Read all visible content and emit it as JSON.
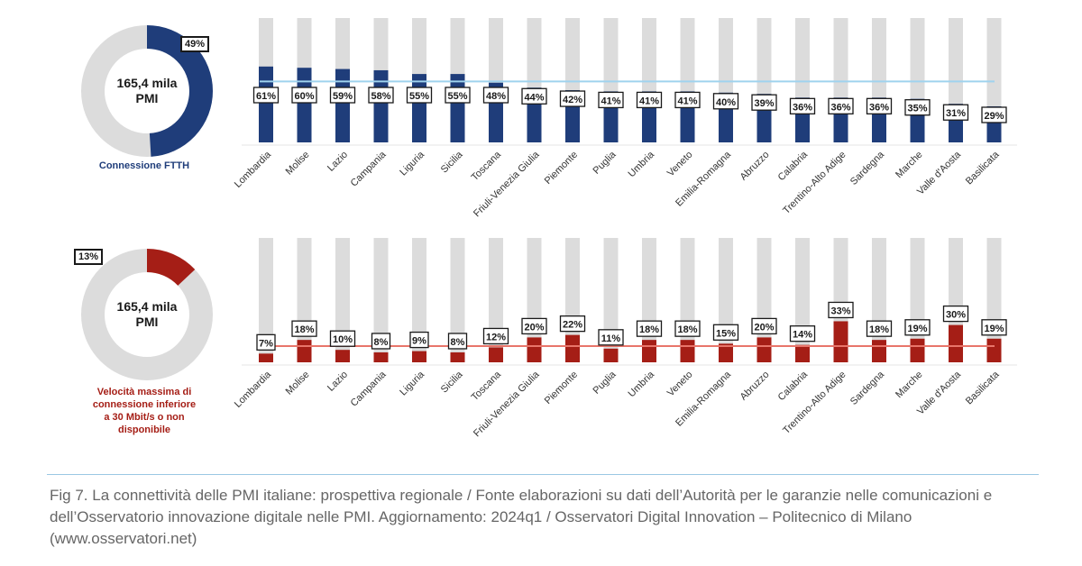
{
  "donuts": {
    "top": {
      "center_line1": "165,4 mila",
      "center_line2": "PMI",
      "percent": 49,
      "percent_label": "49%",
      "caption": "Connessione FTTH",
      "color": "#1f3d7a"
    },
    "bottom": {
      "center_line1": "165,4 mila",
      "center_line2": "PMI",
      "percent": 13,
      "percent_label": "13%",
      "caption_lines": [
        "Velocità massima di",
        "connessione inferiore",
        "a 30 Mbit/s o non",
        "disponibile"
      ],
      "color": "#a51e16"
    }
  },
  "chart_data": [
    {
      "type": "bar",
      "categories": [
        "Lombardia",
        "Molise",
        "Lazio",
        "Campania",
        "Liguria",
        "Sicilia",
        "Toscana",
        "Friuli-Venezia Giulia",
        "Piemonte",
        "Puglia",
        "Umbria",
        "Veneto",
        "Emilia-Romagna",
        "Abruzzo",
        "Calabria",
        "Trentino-Alto Adige",
        "Sardegna",
        "Marche",
        "Valle d'Aosta",
        "Basilicata"
      ],
      "values": [
        61,
        60,
        59,
        58,
        55,
        55,
        48,
        44,
        42,
        41,
        41,
        41,
        40,
        39,
        36,
        36,
        36,
        35,
        31,
        29
      ],
      "labels": [
        "61%",
        "60%",
        "59%",
        "58%",
        "55%",
        "55%",
        "48%",
        "44%",
        "42%",
        "41%",
        "41%",
        "41%",
        "40%",
        "39%",
        "36%",
        "36%",
        "36%",
        "35%",
        "31%",
        "29%"
      ],
      "reference_line": 49,
      "ylim": [
        0,
        100
      ],
      "bar_color": "#1f3d7a",
      "track_color": "#dcdcdc",
      "reference_color": "#9fd3ee"
    },
    {
      "type": "bar",
      "categories": [
        "Lombardia",
        "Molise",
        "Lazio",
        "Campania",
        "Liguria",
        "Sicilia",
        "Toscana",
        "Friuli-Venezia Giulia",
        "Piemonte",
        "Puglia",
        "Umbria",
        "Veneto",
        "Emilia-Romagna",
        "Abruzzo",
        "Calabria",
        "Trentino-Alto Adige",
        "Sardegna",
        "Marche",
        "Valle d'Aosta",
        "Basilicata"
      ],
      "values": [
        7,
        18,
        10,
        8,
        9,
        8,
        12,
        20,
        22,
        11,
        18,
        18,
        15,
        20,
        14,
        33,
        18,
        19,
        30,
        19
      ],
      "labels": [
        "7%",
        "18%",
        "10%",
        "8%",
        "9%",
        "8%",
        "12%",
        "20%",
        "22%",
        "11%",
        "18%",
        "18%",
        "15%",
        "20%",
        "14%",
        "33%",
        "18%",
        "19%",
        "30%",
        "19%"
      ],
      "reference_line": 13,
      "ylim": [
        0,
        100
      ],
      "bar_color": "#a51e16",
      "track_color": "#dcdcdc",
      "reference_color": "#e8756a"
    }
  ],
  "footnote": "Fig 7. La connettività delle PMI italiane: prospettiva regionale / Fonte elaborazioni su dati dell’Autorità per le garanzie nelle comunicazioni e dell’Osservatorio innovazione digitale nelle PMI. Aggiornamento: 2024q1 / Osservatori Digital Innovation – Politecnico di Milano (www.osservatori.net)"
}
